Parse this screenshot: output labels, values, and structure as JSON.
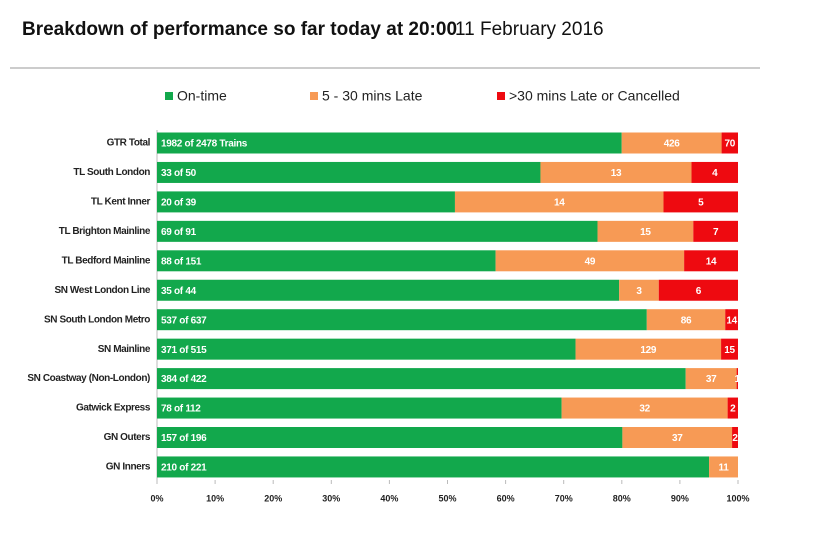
{
  "chart_data": {
    "type": "stacked-bar-100",
    "title": "Breakdown of performance so far today at 20:00",
    "subtitle": "11 February 2016",
    "categories": [
      "GTR Total",
      "TL South London",
      "TL Kent Inner",
      "TL Brighton Mainline",
      "TL Bedford Mainline",
      "SN West London Line",
      "SN South London Metro",
      "SN Mainline",
      "SN Coastway (Non-London)",
      "Gatwick Express",
      "GN Outers",
      "GN Inners"
    ],
    "series": [
      {
        "name": "On-time",
        "color": "#12a84c",
        "values": [
          1982,
          33,
          20,
          69,
          88,
          35,
          537,
          371,
          384,
          78,
          157,
          210
        ],
        "value_labels": [
          "1982 of 2478 Trains",
          "33 of 50",
          "20 of 39",
          "69 of 91",
          "88 of 151",
          "35 of 44",
          "537 of 637",
          "371 of 515",
          "384 of 422",
          "78 of 112",
          "157 of 196",
          "210 of 221"
        ]
      },
      {
        "name": "5 - 30 mins Late",
        "color": "#f79a55",
        "values": [
          426,
          13,
          14,
          15,
          49,
          3,
          86,
          129,
          37,
          32,
          37,
          11
        ]
      },
      {
        "name": ">30 mins Late or Cancelled",
        "color": "#ee0a10",
        "values": [
          70,
          4,
          5,
          7,
          14,
          6,
          14,
          15,
          1,
          2,
          2,
          0
        ]
      }
    ],
    "xlim": [
      0,
      100
    ],
    "xticks": [
      {
        "value": 0,
        "label": "0%"
      },
      {
        "value": 10,
        "label": "10%"
      },
      {
        "value": 20,
        "label": "20%"
      },
      {
        "value": 30,
        "label": "30%"
      },
      {
        "value": 40,
        "label": "40%"
      },
      {
        "value": 50,
        "label": "50%"
      },
      {
        "value": 60,
        "label": "60%"
      },
      {
        "value": 70,
        "label": "70%"
      },
      {
        "value": 80,
        "label": "80%"
      },
      {
        "value": 90,
        "label": "90%"
      },
      {
        "value": 100,
        "label": "100%"
      }
    ]
  }
}
